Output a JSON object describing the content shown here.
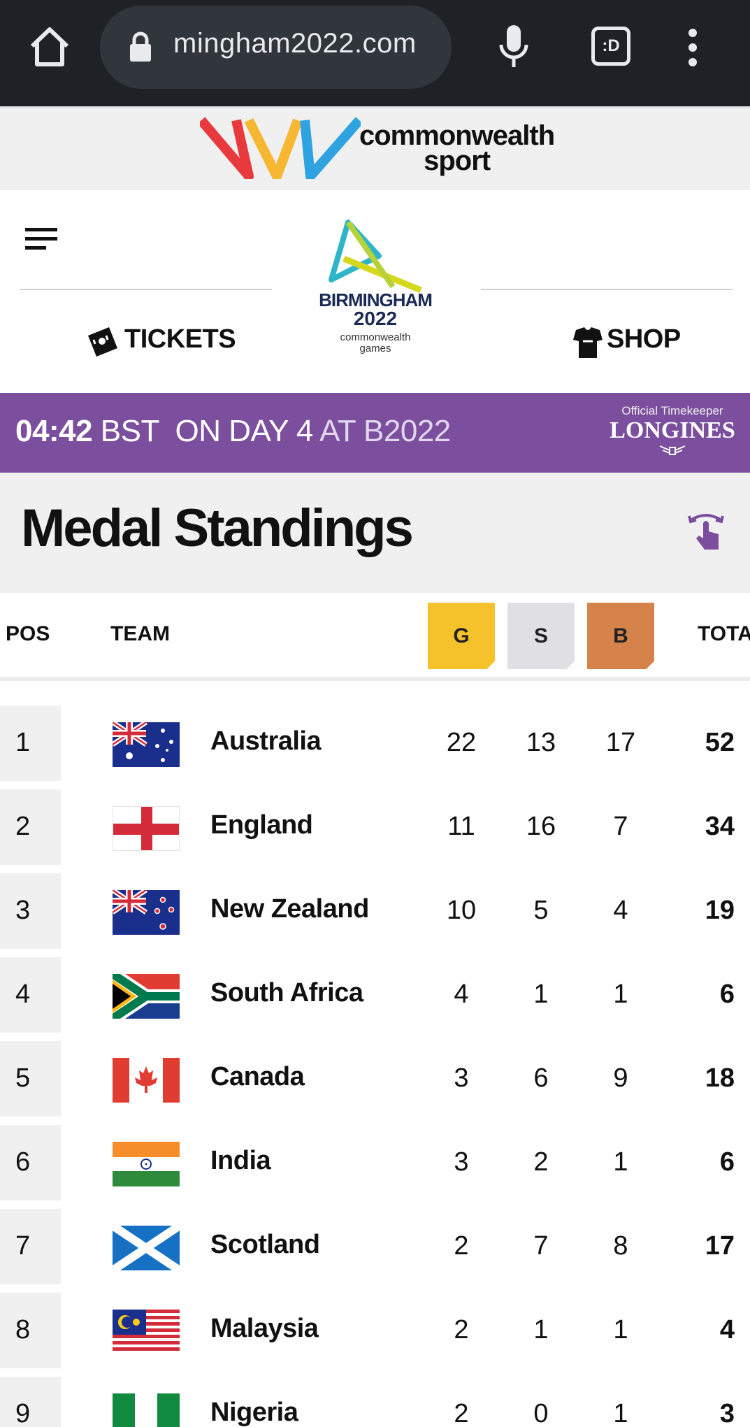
{
  "browser": {
    "url": "mingham2022.com",
    "icons": [
      "home-icon",
      "lock-icon",
      "microphone-icon",
      "tab-switcher-icon",
      "more-vert-icon"
    ],
    "tab_label": ":D"
  },
  "banner": {
    "brand_line1": "commonwealth",
    "brand_line2": "sport"
  },
  "header": {
    "menu_icon": "hamburger-icon",
    "logo_line1": "BIRMINGHAM",
    "logo_line2": "2022",
    "logo_line3": "commonwealth",
    "logo_line4": "games",
    "tickets_label": "TICKETS",
    "shop_label": "SHOP"
  },
  "timer": {
    "time": "04:42",
    "zone": "BST",
    "day_text": "ON DAY 4",
    "at_text": "AT B2022",
    "timekeeper_label": "Official Timekeeper",
    "timekeeper_brand": "LONGINES"
  },
  "page": {
    "title": "Medal Standings"
  },
  "table": {
    "columns": {
      "pos": "POS",
      "team": "TEAM",
      "gold": "G",
      "silver": "S",
      "bronze": "B",
      "total": "TOTAL"
    },
    "rows": [
      {
        "pos": "1",
        "team": "Australia",
        "gold": "22",
        "silver": "13",
        "bronze": "17",
        "total": "52"
      },
      {
        "pos": "2",
        "team": "England",
        "gold": "11",
        "silver": "16",
        "bronze": "7",
        "total": "34"
      },
      {
        "pos": "3",
        "team": "New Zealand",
        "gold": "10",
        "silver": "5",
        "bronze": "4",
        "total": "19"
      },
      {
        "pos": "4",
        "team": "South Africa",
        "gold": "4",
        "silver": "1",
        "bronze": "1",
        "total": "6"
      },
      {
        "pos": "5",
        "team": "Canada",
        "gold": "3",
        "silver": "6",
        "bronze": "9",
        "total": "18"
      },
      {
        "pos": "6",
        "team": "India",
        "gold": "3",
        "silver": "2",
        "bronze": "1",
        "total": "6"
      },
      {
        "pos": "7",
        "team": "Scotland",
        "gold": "2",
        "silver": "7",
        "bronze": "8",
        "total": "17"
      },
      {
        "pos": "8",
        "team": "Malaysia",
        "gold": "2",
        "silver": "1",
        "bronze": "1",
        "total": "4"
      },
      {
        "pos": "9",
        "team": "Nigeria",
        "gold": "2",
        "silver": "0",
        "bronze": "1",
        "total": "3"
      }
    ]
  },
  "colors": {
    "browser_bg": "#1e2226",
    "timer_bg": "#7b4f9d",
    "gold": "#f5c22b",
    "silver": "#e0e0e3",
    "bronze": "#d5834a"
  }
}
